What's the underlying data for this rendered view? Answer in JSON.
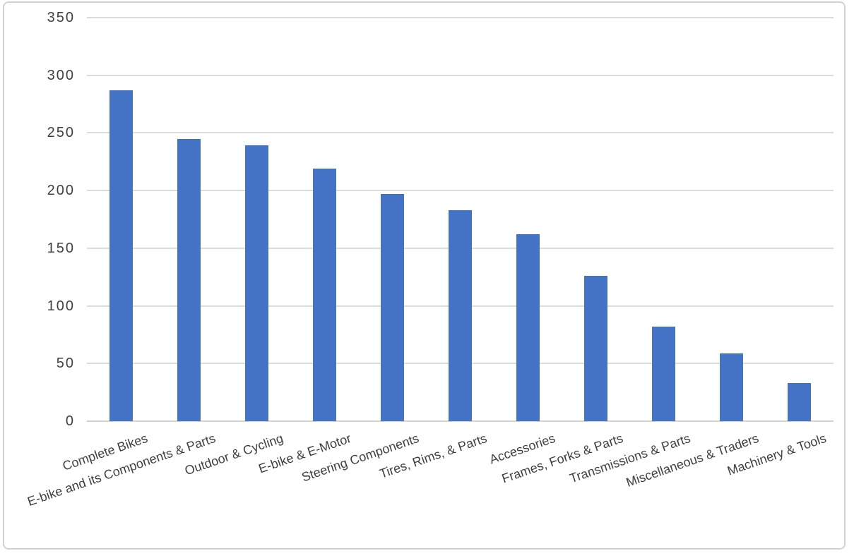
{
  "chart_data": {
    "type": "bar",
    "title": "",
    "xlabel": "",
    "ylabel": "",
    "categories": [
      "Complete Bikes",
      "E-bike and its Components & Parts",
      "Outdoor & Cycling",
      "E-bike & E-Motor",
      "Steering Components",
      "Tires, Rims, & Parts",
      "Accessories",
      "Frames, Forks & Parts",
      "Transmissions & Parts",
      "Miscellaneous & Traders",
      "Machinery & Tools"
    ],
    "values": [
      287,
      245,
      239,
      219,
      197,
      183,
      162,
      126,
      82,
      59,
      33
    ],
    "yticks": [
      0,
      50,
      100,
      150,
      200,
      250,
      300,
      350
    ],
    "ylim": [
      0,
      350
    ],
    "grid": true,
    "legend": false,
    "x_label_rotation_deg": -19,
    "colors": {
      "bar": "#4472C4",
      "gridline": "#dcdcdc",
      "axis_line": "#d2d2d2",
      "tick_text": "#404040",
      "category_text": "#3f3f3f",
      "frame_border": "#cfd2d4",
      "background": "#ffffff"
    }
  }
}
